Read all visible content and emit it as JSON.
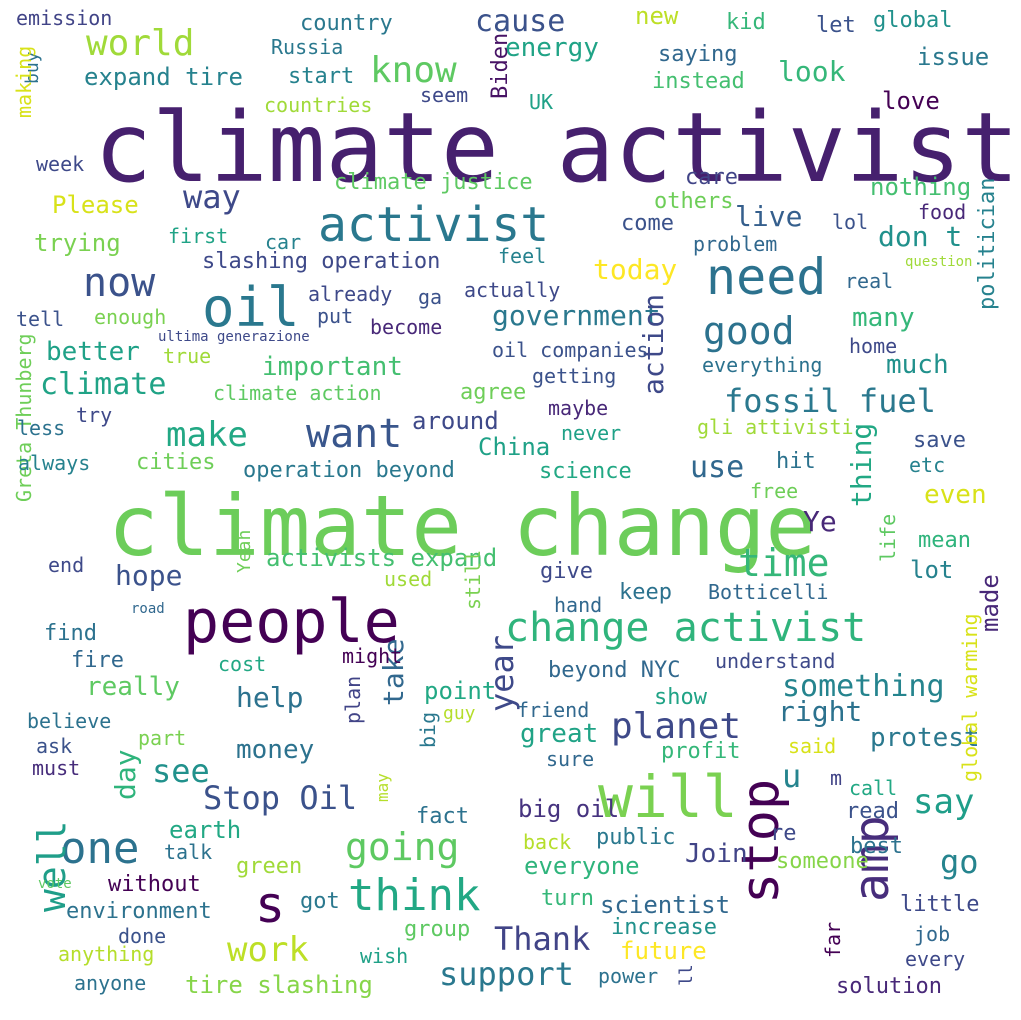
{
  "palette": {
    "background": "#ffffff",
    "scheme": "viridis"
  },
  "words": [
    {
      "text": "climate activist",
      "color": "#46206e"
    },
    {
      "text": "climate change",
      "color": "#6ccd5a"
    },
    {
      "text": "people",
      "color": "#440154"
    },
    {
      "text": "will",
      "color": "#7ad151"
    },
    {
      "text": "stop",
      "color": "#440154"
    },
    {
      "text": "need",
      "color": "#2c728e"
    },
    {
      "text": "activist",
      "color": "#2a788e"
    },
    {
      "text": "change activist",
      "color": "#2fb47c"
    },
    {
      "text": "oil",
      "color": "#2a788e"
    },
    {
      "text": "one",
      "color": "#2c728e"
    },
    {
      "text": "s",
      "color": "#440154"
    },
    {
      "text": "think",
      "color": "#22a884"
    },
    {
      "text": "amp",
      "color": "#472d7b"
    },
    {
      "text": "want",
      "color": "#39568c"
    },
    {
      "text": "now",
      "color": "#3b528b"
    },
    {
      "text": "Stop Oil",
      "color": "#3b528b"
    },
    {
      "text": "planet",
      "color": "#3e4989"
    },
    {
      "text": "going",
      "color": "#5ec962"
    },
    {
      "text": "support",
      "color": "#2a788e"
    },
    {
      "text": "Thank",
      "color": "#414487"
    },
    {
      "text": "time",
      "color": "#35b779"
    },
    {
      "text": "work",
      "color": "#bddf26"
    },
    {
      "text": "well",
      "color": "#1f9e89"
    },
    {
      "text": "world",
      "color": "#a0da39"
    },
    {
      "text": "know",
      "color": "#5ec962"
    },
    {
      "text": "good",
      "color": "#2c728e"
    },
    {
      "text": "fossil fuel",
      "color": "#2a788e"
    },
    {
      "text": "make",
      "color": "#22a884"
    },
    {
      "text": "see",
      "color": "#21918c"
    },
    {
      "text": "u",
      "color": "#25848e"
    },
    {
      "text": "say",
      "color": "#1f9e89"
    },
    {
      "text": "go",
      "color": "#25848e"
    },
    {
      "text": "something",
      "color": "#25848e"
    },
    {
      "text": "government",
      "color": "#2a788e"
    },
    {
      "text": "year",
      "color": "#3e4989"
    },
    {
      "text": "take",
      "color": "#31688e"
    },
    {
      "text": "action",
      "color": "#3e4989"
    },
    {
      "text": "hope",
      "color": "#3b528b"
    },
    {
      "text": "climate",
      "color": "#20a386"
    },
    {
      "text": "way",
      "color": "#3e4989"
    },
    {
      "text": "cause",
      "color": "#3b528b"
    },
    {
      "text": "day",
      "color": "#2fb47c"
    },
    {
      "text": "thing",
      "color": "#22a884"
    },
    {
      "text": "don t",
      "color": "#21918c"
    },
    {
      "text": "live",
      "color": "#355f8d"
    },
    {
      "text": "energy",
      "color": "#20a386"
    },
    {
      "text": "look",
      "color": "#35b779"
    },
    {
      "text": "even",
      "color": "#d8e219"
    },
    {
      "text": "right",
      "color": "#2c728e"
    },
    {
      "text": "protest",
      "color": "#2a788e"
    },
    {
      "text": "help",
      "color": "#2c728e"
    },
    {
      "text": "Join",
      "color": "#414487"
    },
    {
      "text": "many",
      "color": "#35b779"
    },
    {
      "text": "much",
      "color": "#21918c"
    },
    {
      "text": "use",
      "color": "#31688e"
    },
    {
      "text": "important",
      "color": "#44bf70"
    },
    {
      "text": "better",
      "color": "#1fa187"
    },
    {
      "text": "today",
      "color": "#fde725"
    },
    {
      "text": "Ye",
      "color": "#482878"
    },
    {
      "text": "great",
      "color": "#20a386"
    },
    {
      "text": "really",
      "color": "#5ec962"
    },
    {
      "text": "money",
      "color": "#2c728e"
    },
    {
      "text": "scientist",
      "color": "#31688e"
    },
    {
      "text": "everyone",
      "color": "#2fb47c"
    },
    {
      "text": "tire slashing",
      "color": "#86d549"
    },
    {
      "text": "expand tire",
      "color": "#26828e"
    },
    {
      "text": "slashing operation",
      "color": "#3e4989"
    },
    {
      "text": "activists expand",
      "color": "#44bf70"
    },
    {
      "text": "operation beyond",
      "color": "#2a788e"
    },
    {
      "text": "climate justice",
      "color": "#5ec962"
    },
    {
      "text": "climate action",
      "color": "#5ec962"
    },
    {
      "text": "oil companies",
      "color": "#3b528b"
    },
    {
      "text": "beyond NYC",
      "color": "#31688e"
    },
    {
      "text": "big oil",
      "color": "#46337f"
    },
    {
      "text": "Botticelli",
      "color": "#31688e"
    },
    {
      "text": "gli attivisti",
      "color": "#a0da39"
    },
    {
      "text": "China",
      "color": "#1fa187"
    },
    {
      "text": "science",
      "color": "#22a884"
    },
    {
      "text": "lot",
      "color": "#26828e"
    },
    {
      "text": "mean",
      "color": "#2fb47c"
    },
    {
      "text": "life",
      "color": "#5ec962"
    },
    {
      "text": "made",
      "color": "#482878"
    },
    {
      "text": "politician",
      "color": "#26828e"
    },
    {
      "text": "global warming",
      "color": "#d8e219"
    },
    {
      "text": "Greta Thunberg",
      "color": "#6ece58"
    },
    {
      "text": "Biden",
      "color": "#471365"
    },
    {
      "text": "emission",
      "color": "#414487"
    },
    {
      "text": "country",
      "color": "#2a788e"
    },
    {
      "text": "Russia",
      "color": "#2a788e"
    },
    {
      "text": "new",
      "color": "#bddf26"
    },
    {
      "text": "kid",
      "color": "#35b779"
    },
    {
      "text": "let",
      "color": "#3b528b"
    },
    {
      "text": "global",
      "color": "#21918c"
    },
    {
      "text": "issue",
      "color": "#2a788e"
    },
    {
      "text": "saying",
      "color": "#31688e"
    },
    {
      "text": "instead",
      "color": "#44bf70"
    },
    {
      "text": "start",
      "color": "#26828e"
    },
    {
      "text": "countries",
      "color": "#a0da39"
    },
    {
      "text": "seem",
      "color": "#3e4989"
    },
    {
      "text": "UK",
      "color": "#1fa187"
    },
    {
      "text": "love",
      "color": "#440154"
    },
    {
      "text": "buy",
      "color": "#2c728e"
    },
    {
      "text": "making",
      "color": "#d8e219"
    },
    {
      "text": "week",
      "color": "#3e4989"
    },
    {
      "text": "Please",
      "color": "#d8e219"
    },
    {
      "text": "care",
      "color": "#414487"
    },
    {
      "text": "nothing",
      "color": "#44bf70"
    },
    {
      "text": "others",
      "color": "#6ece58"
    },
    {
      "text": "food",
      "color": "#482878"
    },
    {
      "text": "trying",
      "color": "#7ad151"
    },
    {
      "text": "first",
      "color": "#20a386"
    },
    {
      "text": "car",
      "color": "#26828e"
    },
    {
      "text": "come",
      "color": "#3b528b"
    },
    {
      "text": "lol",
      "color": "#3b528b"
    },
    {
      "text": "problem",
      "color": "#31688e"
    },
    {
      "text": "question",
      "color": "#a0da39"
    },
    {
      "text": "feel",
      "color": "#26828e"
    },
    {
      "text": "real",
      "color": "#31688e"
    },
    {
      "text": "already",
      "color": "#3e4989"
    },
    {
      "text": "ga",
      "color": "#3b528b"
    },
    {
      "text": "actually",
      "color": "#3e4989"
    },
    {
      "text": "tell",
      "color": "#3b528b"
    },
    {
      "text": "enough",
      "color": "#7ad151"
    },
    {
      "text": "put",
      "color": "#3b528b"
    },
    {
      "text": "become",
      "color": "#482878"
    },
    {
      "text": "ultima generazione",
      "color": "#3e4989"
    },
    {
      "text": "true",
      "color": "#a0da39"
    },
    {
      "text": "home",
      "color": "#3e4989"
    },
    {
      "text": "everything",
      "color": "#2c728e"
    },
    {
      "text": "getting",
      "color": "#3b528b"
    },
    {
      "text": "agree",
      "color": "#6ece58"
    },
    {
      "text": "maybe",
      "color": "#482878"
    },
    {
      "text": "less",
      "color": "#2c728e"
    },
    {
      "text": "try",
      "color": "#3e4989"
    },
    {
      "text": "around",
      "color": "#3e4989"
    },
    {
      "text": "never",
      "color": "#1fa187"
    },
    {
      "text": "save",
      "color": "#3b528b"
    },
    {
      "text": "always",
      "color": "#26828e"
    },
    {
      "text": "cities",
      "color": "#6ece58"
    },
    {
      "text": "hit",
      "color": "#2c728e"
    },
    {
      "text": "etc",
      "color": "#26828e"
    },
    {
      "text": "free",
      "color": "#6ece58"
    },
    {
      "text": "end",
      "color": "#3e4989"
    },
    {
      "text": "Yeah",
      "color": "#6ece58"
    },
    {
      "text": "used",
      "color": "#a0da39"
    },
    {
      "text": "give",
      "color": "#3e4989"
    },
    {
      "text": "keep",
      "color": "#2c728e"
    },
    {
      "text": "road",
      "color": "#31688e"
    },
    {
      "text": "still",
      "color": "#7ad151"
    },
    {
      "text": "hand",
      "color": "#31688e"
    },
    {
      "text": "find",
      "color": "#2c728e"
    },
    {
      "text": "fire",
      "color": "#31688e"
    },
    {
      "text": "cost",
      "color": "#22a884"
    },
    {
      "text": "might",
      "color": "#440154"
    },
    {
      "text": "understand",
      "color": "#3e4989"
    },
    {
      "text": "point",
      "color": "#22a884"
    },
    {
      "text": "show",
      "color": "#20a386"
    },
    {
      "text": "believe",
      "color": "#2c728e"
    },
    {
      "text": "plan",
      "color": "#414487"
    },
    {
      "text": "guy",
      "color": "#b5de2b"
    },
    {
      "text": "friend",
      "color": "#31688e"
    },
    {
      "text": "part",
      "color": "#7ad151"
    },
    {
      "text": "big",
      "color": "#2a788e"
    },
    {
      "text": "ask",
      "color": "#3b528b"
    },
    {
      "text": "must",
      "color": "#472d7b"
    },
    {
      "text": "sure",
      "color": "#31688e"
    },
    {
      "text": "profit",
      "color": "#35b779"
    },
    {
      "text": "said",
      "color": "#d8e219"
    },
    {
      "text": "m",
      "color": "#414487"
    },
    {
      "text": "call",
      "color": "#22a884"
    },
    {
      "text": "may",
      "color": "#b5de2b"
    },
    {
      "text": "earth",
      "color": "#22a884"
    },
    {
      "text": "fact",
      "color": "#2c728e"
    },
    {
      "text": "read",
      "color": "#3b528b"
    },
    {
      "text": "talk",
      "color": "#2c728e"
    },
    {
      "text": "back",
      "color": "#b5de2b"
    },
    {
      "text": "public",
      "color": "#2a788e"
    },
    {
      "text": "re",
      "color": "#3e4989"
    },
    {
      "text": "best",
      "color": "#2c728e"
    },
    {
      "text": "green",
      "color": "#a0da39"
    },
    {
      "text": "someone",
      "color": "#86d549"
    },
    {
      "text": "vote",
      "color": "#5ec962"
    },
    {
      "text": "without",
      "color": "#440154"
    },
    {
      "text": "got",
      "color": "#2a788e"
    },
    {
      "text": "turn",
      "color": "#35b779"
    },
    {
      "text": "little",
      "color": "#3e4989"
    },
    {
      "text": "environment",
      "color": "#2c728e"
    },
    {
      "text": "done",
      "color": "#3b528b"
    },
    {
      "text": "group",
      "color": "#5ec962"
    },
    {
      "text": "increase",
      "color": "#21918c"
    },
    {
      "text": "job",
      "color": "#31688e"
    },
    {
      "text": "anything",
      "color": "#b5de2b"
    },
    {
      "text": "wish",
      "color": "#1fa187"
    },
    {
      "text": "future",
      "color": "#fde725"
    },
    {
      "text": "far",
      "color": "#440154"
    },
    {
      "text": "every",
      "color": "#3e4989"
    },
    {
      "text": "anyone",
      "color": "#2c728e"
    },
    {
      "text": "power",
      "color": "#2c728e"
    },
    {
      "text": "ll",
      "color": "#3e4989"
    },
    {
      "text": "solution",
      "color": "#482878"
    }
  ]
}
